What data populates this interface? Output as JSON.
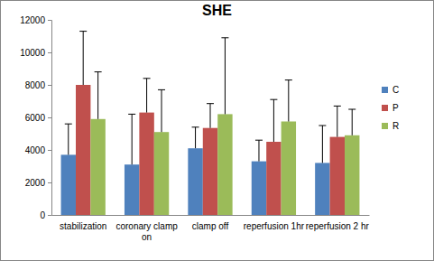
{
  "chart_data": {
    "type": "bar",
    "title": "SHE",
    "categories": [
      "stabilization",
      "coronary clamp on",
      "clamp off",
      "reperfusion 1hr",
      "reperfusion 2 hr"
    ],
    "series": [
      {
        "name": "C",
        "color": "#4f81bd",
        "values": [
          3700,
          3100,
          4100,
          3300,
          3200
        ],
        "errors": [
          1900,
          3100,
          1300,
          1300,
          2300
        ]
      },
      {
        "name": "P",
        "color": "#c0504d",
        "values": [
          8000,
          6300,
          5350,
          4500,
          4800
        ],
        "errors": [
          3300,
          2100,
          1500,
          2600,
          1900
        ]
      },
      {
        "name": "R",
        "color": "#9bbb59",
        "values": [
          5900,
          5100,
          6200,
          5750,
          4900
        ],
        "errors": [
          2900,
          2600,
          4700,
          2550,
          1600
        ]
      }
    ],
    "ylim": [
      0,
      12000
    ],
    "yticks": [
      0,
      2000,
      4000,
      6000,
      8000,
      10000,
      12000
    ],
    "grid": false,
    "legend": "right"
  }
}
